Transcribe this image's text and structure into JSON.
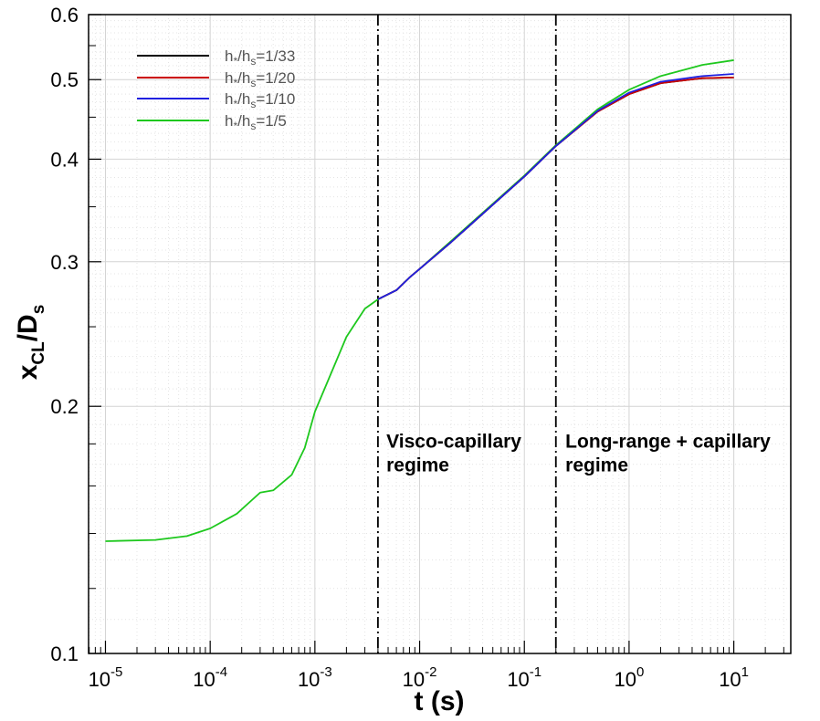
{
  "chart_data": {
    "type": "line",
    "xscale": "log",
    "yscale": "log",
    "xlim": [
      6.9e-06,
      35
    ],
    "ylim": [
      0.1,
      0.6
    ],
    "grid": true,
    "legend_position": "top-left",
    "xlabel": "t (s)",
    "ylabel_main": "x",
    "ylabel_main_sub": "CL",
    "ylabel_sep": "/D",
    "ylabel_sep_sub": "s",
    "xticks": [
      {
        "value": 1e-05,
        "base": "10",
        "exp": "-5"
      },
      {
        "value": 0.0001,
        "base": "10",
        "exp": "-4"
      },
      {
        "value": 0.001,
        "base": "10",
        "exp": "-3"
      },
      {
        "value": 0.01,
        "base": "10",
        "exp": "-2"
      },
      {
        "value": 0.1,
        "base": "10",
        "exp": "-1"
      },
      {
        "value": 1,
        "base": "10",
        "exp": "0"
      },
      {
        "value": 10,
        "base": "10",
        "exp": "1"
      }
    ],
    "yticks": [
      {
        "value": 0.1,
        "label": "0.1"
      },
      {
        "value": 0.2,
        "label": "0.2"
      },
      {
        "value": 0.3,
        "label": "0.3"
      },
      {
        "value": 0.4,
        "label": "0.4"
      },
      {
        "value": 0.5,
        "label": "0.5"
      },
      {
        "value": 0.6,
        "label": "0.6"
      }
    ],
    "vlines": [
      0.004,
      0.2
    ],
    "annotations": [
      {
        "lines": [
          "Visco-capillary",
          "regime"
        ],
        "x": 0.0041,
        "y": 0.178
      },
      {
        "lines": [
          "Long-range + capillary",
          "regime"
        ],
        "x": 0.21,
        "y": 0.178
      }
    ],
    "series": [
      {
        "name": "h*/hs=1/33",
        "legend": {
          "a": "h",
          "a_sub": "*",
          "b": "/h",
          "b_sub": "s",
          "c": "=1/33"
        },
        "color": "#000000",
        "points": [
          [
            0.004,
            0.27
          ],
          [
            0.006,
            0.277
          ],
          [
            0.008,
            0.287
          ],
          [
            0.01,
            0.294
          ],
          [
            0.02,
            0.317
          ],
          [
            0.05,
            0.352
          ],
          [
            0.1,
            0.381
          ],
          [
            0.2,
            0.415
          ],
          [
            0.5,
            0.457
          ],
          [
            1,
            0.48
          ],
          [
            2,
            0.495
          ],
          [
            5,
            0.502
          ],
          [
            10,
            0.503
          ]
        ]
      },
      {
        "name": "h*/hs=1/20",
        "legend": {
          "a": "h",
          "a_sub": "*",
          "b": "/h",
          "b_sub": "s",
          "c": "=1/20"
        },
        "color": "#cc0000",
        "points": [
          [
            0.004,
            0.27
          ],
          [
            0.006,
            0.277
          ],
          [
            0.008,
            0.287
          ],
          [
            0.01,
            0.294
          ],
          [
            0.02,
            0.317
          ],
          [
            0.05,
            0.352
          ],
          [
            0.1,
            0.381
          ],
          [
            0.2,
            0.415
          ],
          [
            0.5,
            0.457
          ],
          [
            1,
            0.48
          ],
          [
            2,
            0.495
          ],
          [
            5,
            0.502
          ],
          [
            10,
            0.503
          ]
        ]
      },
      {
        "name": "h*/hs=1/10",
        "legend": {
          "a": "h",
          "a_sub": "*",
          "b": "/h",
          "b_sub": "s",
          "c": "=1/10"
        },
        "color": "#2020e0",
        "points": [
          [
            0.004,
            0.27
          ],
          [
            0.006,
            0.277
          ],
          [
            0.008,
            0.287
          ],
          [
            0.01,
            0.294
          ],
          [
            0.02,
            0.317
          ],
          [
            0.05,
            0.352
          ],
          [
            0.1,
            0.381
          ],
          [
            0.2,
            0.415
          ],
          [
            0.5,
            0.458
          ],
          [
            1,
            0.482
          ],
          [
            2,
            0.497
          ],
          [
            5,
            0.505
          ],
          [
            10,
            0.508
          ]
        ]
      },
      {
        "name": "h*/hs=1/5",
        "legend": {
          "a": "h",
          "a_sub": "*",
          "b": "/h",
          "b_sub": "s",
          "c": "=1/5"
        },
        "color": "#1ec81e",
        "points": [
          [
            1e-05,
            0.137
          ],
          [
            3e-05,
            0.1375
          ],
          [
            6e-05,
            0.139
          ],
          [
            0.0001,
            0.142
          ],
          [
            0.00018,
            0.148
          ],
          [
            0.0003,
            0.157
          ],
          [
            0.0004,
            0.158
          ],
          [
            0.0006,
            0.165
          ],
          [
            0.0008,
            0.178
          ],
          [
            0.001,
            0.197
          ],
          [
            0.002,
            0.243
          ],
          [
            0.003,
            0.263
          ],
          [
            0.004,
            0.27
          ],
          [
            0.006,
            0.277
          ],
          [
            0.008,
            0.287
          ],
          [
            0.01,
            0.294
          ],
          [
            0.02,
            0.318
          ],
          [
            0.05,
            0.353
          ],
          [
            0.1,
            0.382
          ],
          [
            0.2,
            0.416
          ],
          [
            0.5,
            0.46
          ],
          [
            1,
            0.486
          ],
          [
            2,
            0.505
          ],
          [
            5,
            0.521
          ],
          [
            10,
            0.528
          ]
        ]
      }
    ]
  }
}
